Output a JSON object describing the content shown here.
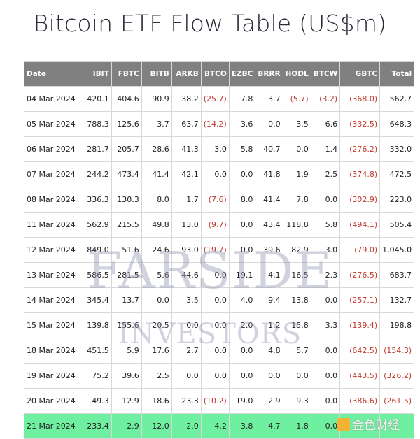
{
  "title": "Bitcoin ETF Flow Table (US$m)",
  "columns": [
    "Date",
    "IBIT",
    "FBTC",
    "BITB",
    "ARKB",
    "BTCO",
    "EZBC",
    "BRRR",
    "HODL",
    "BTCW",
    "GBTC",
    "Total"
  ],
  "rows": [
    [
      "04 Mar 2024",
      "420.1",
      "404.6",
      "90.9",
      "38.2",
      "(25.7)",
      "7.8",
      "3.7",
      "(5.7)",
      "(3.2)",
      "(368.0)",
      "562.7"
    ],
    [
      "05 Mar 2024",
      "788.3",
      "125.6",
      "3.7",
      "63.7",
      "(14.2)",
      "3.6",
      "0.0",
      "3.5",
      "6.6",
      "(332.5)",
      "648.3"
    ],
    [
      "06 Mar 2024",
      "281.7",
      "205.7",
      "28.6",
      "41.3",
      "3.0",
      "5.8",
      "40.7",
      "0.0",
      "1.4",
      "(276.2)",
      "332.0"
    ],
    [
      "07 Mar 2024",
      "244.2",
      "473.4",
      "41.4",
      "42.1",
      "0.0",
      "0.0",
      "41.8",
      "1.9",
      "2.5",
      "(374.8)",
      "472.5"
    ],
    [
      "08 Mar 2024",
      "336.3",
      "130.3",
      "8.0",
      "1.7",
      "(7.6)",
      "8.0",
      "41.4",
      "7.8",
      "0.0",
      "(302.9)",
      "223.0"
    ],
    [
      "11 Mar 2024",
      "562.9",
      "215.5",
      "49.8",
      "13.0",
      "(9.7)",
      "0.0",
      "43.4",
      "118.8",
      "5.8",
      "(494.1)",
      "505.4"
    ],
    [
      "12 Mar 2024",
      "849.0",
      "51.6",
      "24.6",
      "93.0",
      "(19.7)",
      "0.0",
      "39.6",
      "82.9",
      "3.0",
      "(79.0)",
      "1,045.0"
    ],
    [
      "13 Mar 2024",
      "586.5",
      "281.5",
      "5.6",
      "44.6",
      "0.0",
      "19.1",
      "4.1",
      "16.5",
      "2.3",
      "(276.5)",
      "683.7"
    ],
    [
      "14 Mar 2024",
      "345.4",
      "13.7",
      "0.0",
      "3.5",
      "0.0",
      "4.0",
      "9.4",
      "13.8",
      "0.0",
      "(257.1)",
      "132.7"
    ],
    [
      "15 Mar 2024",
      "139.8",
      "155.6",
      "20.5",
      "0.0",
      "0.0",
      "2.0",
      "1.2",
      "15.8",
      "3.3",
      "(139.4)",
      "198.8"
    ],
    [
      "18 Mar 2024",
      "451.5",
      "5.9",
      "17.6",
      "2.7",
      "0.0",
      "0.0",
      "4.8",
      "5.7",
      "0.0",
      "(642.5)",
      "(154.3)"
    ],
    [
      "19 Mar 2024",
      "75.2",
      "39.6",
      "2.5",
      "0.0",
      "0.0",
      "0.0",
      "0.0",
      "0.0",
      "0.0",
      "(443.5)",
      "(326.2)"
    ],
    [
      "20 Mar 2024",
      "49.3",
      "12.9",
      "18.6",
      "23.3",
      "(10.2)",
      "19.0",
      "2.9",
      "9.3",
      "0.0",
      "(386.6)",
      "(261.5)"
    ],
    [
      "21 Mar 2024",
      "233.4",
      "2.9",
      "12.0",
      "2.0",
      "4.2",
      "3.8",
      "4.7",
      "1.8",
      "0.0",
      "",
      ""
    ]
  ],
  "highlight_row": 13,
  "colors": {
    "header_bg": "#808080",
    "negative": "#c0392b",
    "highlight": "#6ff0a0"
  },
  "watermark": {
    "line1": "FARSIDE",
    "line2": "INVESTORS"
  },
  "corner_logo": "金色财经"
}
